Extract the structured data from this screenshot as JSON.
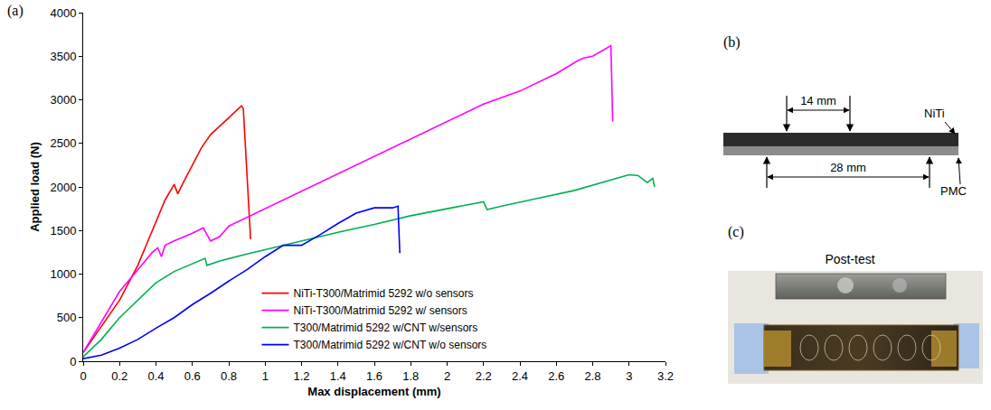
{
  "chart_data": {
    "type": "line",
    "panel_label": "(a)",
    "xlabel": "Max displacement (mm)",
    "ylabel": "Applied load (N)",
    "xlim": [
      0,
      3.2
    ],
    "xticks": [
      0,
      0.2,
      0.4,
      0.6,
      0.8,
      1,
      1.2,
      1.4,
      1.6,
      1.8,
      2,
      2.2,
      2.4,
      2.6,
      2.8,
      3,
      3.2
    ],
    "ylim": [
      0,
      4000
    ],
    "yticks": [
      0,
      500,
      1000,
      1500,
      2000,
      2500,
      3000,
      3500,
      4000
    ],
    "grid": false,
    "legend": "lower center",
    "series": [
      {
        "name": "NiTi-T300/Matrimid 5292 w/o sensors",
        "color": "#ff0000",
        "x": [
          0,
          0.05,
          0.1,
          0.15,
          0.2,
          0.25,
          0.3,
          0.35,
          0.4,
          0.45,
          0.5,
          0.52,
          0.55,
          0.6,
          0.65,
          0.7,
          0.75,
          0.8,
          0.85,
          0.87,
          0.88,
          0.92
        ],
        "values": [
          100,
          250,
          400,
          550,
          700,
          900,
          1100,
          1350,
          1600,
          1850,
          2030,
          1920,
          2050,
          2250,
          2450,
          2600,
          2700,
          2800,
          2900,
          2930,
          2900,
          1400
        ]
      },
      {
        "name": "NiTi-T300/Matrimid 5292 w/ sensors",
        "color": "#ff00ff",
        "x": [
          0,
          0.1,
          0.2,
          0.3,
          0.38,
          0.41,
          0.43,
          0.45,
          0.5,
          0.6,
          0.66,
          0.7,
          0.75,
          0.8,
          1.0,
          1.2,
          1.4,
          1.6,
          1.8,
          2.0,
          2.2,
          2.4,
          2.6,
          2.72,
          2.75,
          2.8,
          2.9,
          2.91
        ],
        "values": [
          100,
          450,
          800,
          1050,
          1250,
          1300,
          1200,
          1330,
          1380,
          1470,
          1530,
          1380,
          1430,
          1550,
          1750,
          1950,
          2150,
          2350,
          2550,
          2750,
          2950,
          3100,
          3300,
          3450,
          3480,
          3500,
          3620,
          2750
        ]
      },
      {
        "name": "T300/Matrimid 5292 w/CNT w/sensors",
        "color": "#00b050",
        "x": [
          0,
          0.1,
          0.2,
          0.3,
          0.4,
          0.5,
          0.6,
          0.67,
          0.68,
          0.75,
          0.9,
          1.0,
          1.2,
          1.4,
          1.6,
          1.7,
          1.8,
          2.0,
          2.2,
          2.22,
          2.3,
          2.5,
          2.7,
          2.9,
          3.0,
          3.05,
          3.1,
          3.13,
          3.14
        ],
        "values": [
          50,
          250,
          500,
          700,
          900,
          1030,
          1120,
          1180,
          1100,
          1150,
          1230,
          1280,
          1380,
          1480,
          1570,
          1620,
          1670,
          1750,
          1830,
          1740,
          1780,
          1870,
          1960,
          2080,
          2140,
          2130,
          2050,
          2100,
          2000
        ]
      },
      {
        "name": "T300/Matrimid 5292 w/CNT w/o sensors",
        "color": "#0000ff",
        "x": [
          0,
          0.1,
          0.2,
          0.3,
          0.4,
          0.5,
          0.6,
          0.7,
          0.8,
          0.9,
          1.0,
          1.1,
          1.2,
          1.3,
          1.4,
          1.5,
          1.6,
          1.7,
          1.73,
          1.74
        ],
        "values": [
          30,
          70,
          150,
          250,
          380,
          500,
          650,
          780,
          920,
          1050,
          1200,
          1330,
          1330,
          1450,
          1580,
          1700,
          1760,
          1760,
          1780,
          1240
        ]
      }
    ]
  },
  "diagram": {
    "panel_label": "(b)",
    "top_dimension": "14 mm",
    "bottom_dimension": "28 mm",
    "top_layer": "NiTi",
    "bottom_layer": "PMC"
  },
  "photo": {
    "panel_label": "(c)",
    "caption": "Post-test"
  }
}
